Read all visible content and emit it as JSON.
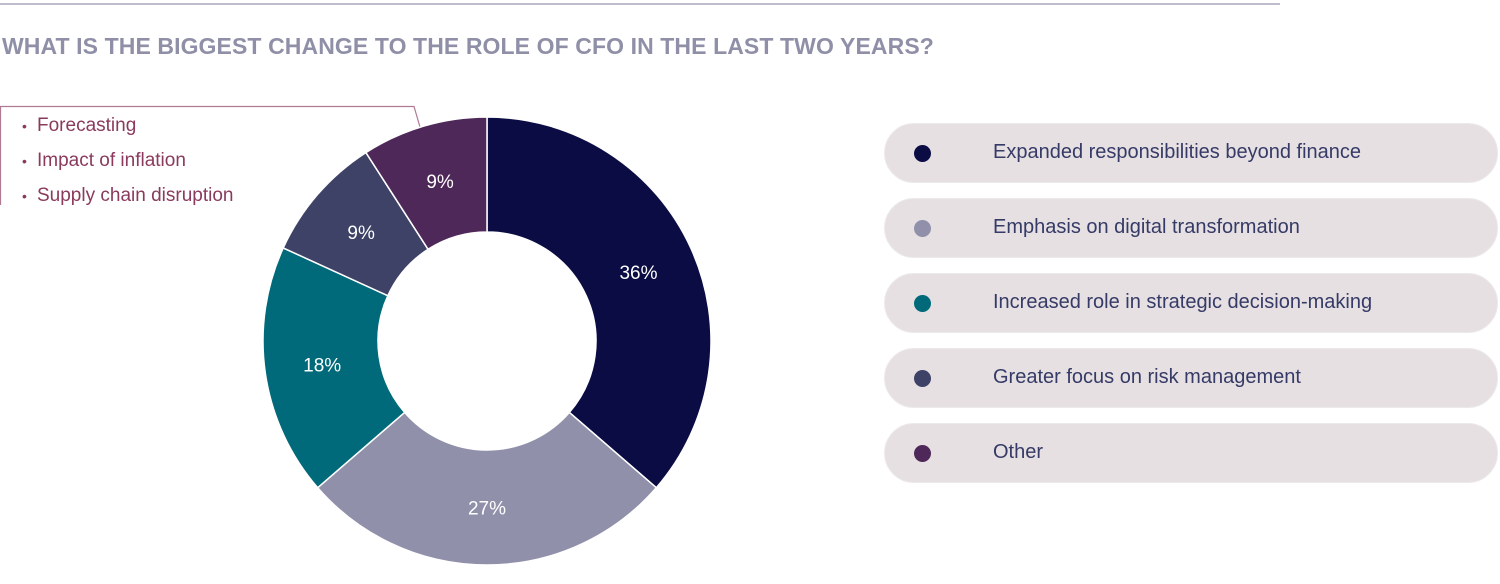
{
  "title": "WHAT IS THE BIGGEST CHANGE TO THE ROLE OF CFO IN THE LAST TWO YEARS?",
  "callout": {
    "items": [
      "Forecasting",
      "Impact of inflation",
      "Supply chain disruption"
    ],
    "color": "#8a3a5c"
  },
  "chart_data": {
    "type": "pie",
    "subtype": "donut",
    "title": "WHAT IS THE BIGGEST CHANGE TO THE ROLE OF CFO IN THE LAST TWO YEARS?",
    "categories": [
      "Expanded responsibilities beyond finance",
      "Emphasis on digital transformation",
      "Increased role in strategic decision-making",
      "Greater focus on risk management",
      "Other"
    ],
    "values": [
      36,
      27,
      18,
      9,
      9
    ],
    "labels": [
      "36%",
      "27%",
      "18%",
      "9%",
      "9%"
    ],
    "colors": [
      "#0b0c44",
      "#9090ab",
      "#006a7a",
      "#3d4266",
      "#4e2858"
    ],
    "legend_position": "right",
    "start": "top, clockwise"
  }
}
